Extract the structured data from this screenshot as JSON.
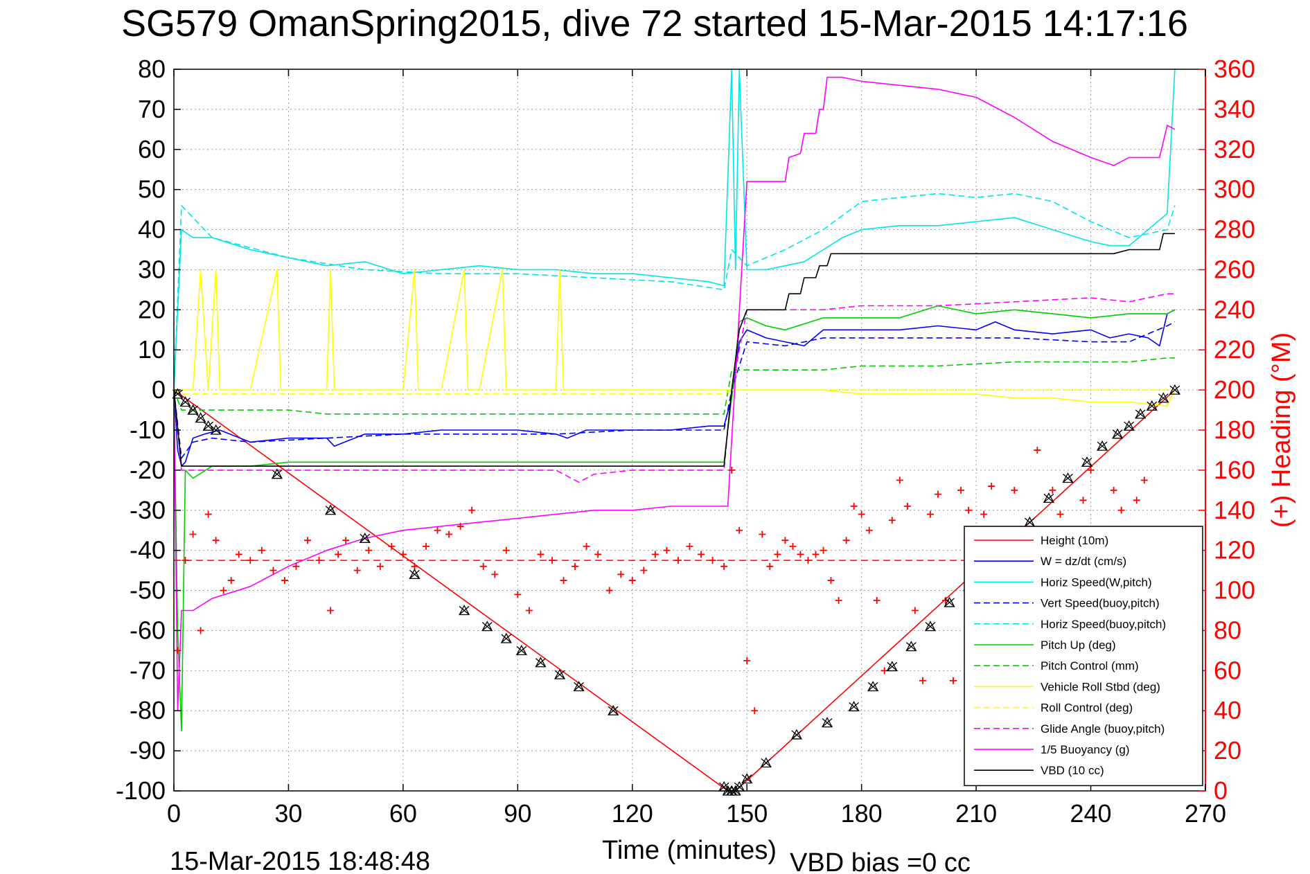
{
  "chart_data": {
    "type": "line",
    "title": "SG579 OmanSpring2015, dive 72 started 15-Mar-2015 14:17:16",
    "xlabel": "Time (minutes)",
    "ylabel": "",
    "y2label": "(+) Heading (°M)",
    "xlim": [
      0,
      270
    ],
    "ylim": [
      -100,
      80
    ],
    "y2lim": [
      0,
      360
    ],
    "xticks": [
      "0",
      "30",
      "60",
      "90",
      "120",
      "150",
      "180",
      "210",
      "240",
      "270"
    ],
    "yticks": [
      "80",
      "70",
      "60",
      "50",
      "40",
      "30",
      "20",
      "10",
      "0",
      "-10",
      "-20",
      "-30",
      "-40",
      "-50",
      "-60",
      "-70",
      "-80",
      "-90",
      "-100"
    ],
    "y2ticks": [
      "360",
      "340",
      "320",
      "300",
      "280",
      "260",
      "240",
      "220",
      "200",
      "180",
      "160",
      "140",
      "120",
      "100",
      "80",
      "60",
      "40",
      "20",
      "0"
    ],
    "grid": true,
    "legend_position": "bottom-right",
    "footer_left": "15-Mar-2015 18:48:48",
    "footer_right": "VBD bias =0 cc",
    "series": [
      {
        "name": "Height (10m)",
        "color": "#ff0000",
        "style": "solid",
        "x": [
          0,
          145,
          147,
          262
        ],
        "y": [
          0,
          -100,
          -100,
          0
        ]
      },
      {
        "name": "W = dz/dt (cm/s)",
        "color": "#0000ff",
        "style": "solid",
        "x": [
          0,
          1,
          2,
          3,
          5,
          8,
          12,
          20,
          30,
          40,
          42,
          50,
          60,
          70,
          80,
          90,
          100,
          103,
          108,
          110,
          120,
          130,
          140,
          144,
          146,
          148,
          150,
          155,
          160,
          165,
          170,
          175,
          180,
          190,
          200,
          210,
          215,
          220,
          230,
          240,
          245,
          250,
          255,
          258,
          260,
          262
        ],
        "y": [
          0,
          -15,
          -19,
          -18,
          -12,
          -11,
          -10,
          -13,
          -12,
          -12,
          -14,
          -11,
          -11,
          -10,
          -10,
          -10,
          -11,
          -12,
          -10,
          -10,
          -10,
          -10,
          -9,
          -9,
          -2,
          12,
          15,
          13,
          12,
          11,
          15,
          15,
          15,
          15,
          16,
          15,
          17,
          15,
          14,
          15,
          13,
          14,
          13,
          11,
          19,
          20
        ]
      },
      {
        "name": "Horiz Speed(W,pitch)",
        "color": "#00e5e5",
        "style": "solid",
        "x": [
          0,
          2,
          5,
          10,
          20,
          30,
          40,
          50,
          60,
          70,
          80,
          90,
          100,
          110,
          120,
          130,
          140,
          144,
          146,
          147,
          148,
          150,
          155,
          160,
          165,
          170,
          175,
          180,
          190,
          200,
          210,
          220,
          230,
          240,
          245,
          250,
          255,
          260,
          262
        ],
        "y": [
          0,
          40,
          38,
          38,
          35,
          33,
          31,
          32,
          29,
          30,
          31,
          30,
          30,
          29,
          29,
          28,
          27,
          26,
          80,
          30,
          80,
          30,
          30,
          31,
          32,
          35,
          38,
          40,
          41,
          41,
          42,
          43,
          40,
          37,
          36,
          36,
          40,
          44,
          80
        ]
      },
      {
        "name": "Vert Speed(buoy,pitch)",
        "color": "#0000ff",
        "style": "dashed",
        "x": [
          0,
          2,
          5,
          10,
          20,
          40,
          60,
          80,
          100,
          120,
          140,
          144,
          146,
          150,
          160,
          170,
          180,
          200,
          220,
          240,
          250,
          260,
          262
        ],
        "y": [
          0,
          -17,
          -13,
          -12,
          -13,
          -12,
          -11,
          -11,
          -11,
          -10,
          -10,
          -10,
          0,
          12,
          11,
          13,
          13,
          13,
          13,
          12,
          12,
          16,
          17
        ]
      },
      {
        "name": "Horiz Speed(buoy,pitch)",
        "color": "#00e5e5",
        "style": "dashed",
        "x": [
          0,
          2,
          10,
          30,
          50,
          70,
          90,
          110,
          130,
          144,
          146,
          150,
          160,
          170,
          180,
          190,
          200,
          210,
          220,
          230,
          240,
          250,
          260,
          262
        ],
        "y": [
          0,
          46,
          38,
          33,
          30,
          29,
          29,
          28,
          27,
          25,
          35,
          31,
          35,
          40,
          47,
          48,
          49,
          48,
          49,
          47,
          42,
          38,
          40,
          46
        ]
      },
      {
        "name": "Pitch Up (deg)",
        "color": "#00cc00",
        "style": "solid",
        "x": [
          0,
          1,
          2,
          3,
          5,
          10,
          20,
          30,
          40,
          50,
          60,
          70,
          80,
          100,
          120,
          140,
          144,
          146,
          148,
          150,
          155,
          160,
          170,
          180,
          190,
          200,
          210,
          220,
          230,
          240,
          250,
          260,
          262
        ],
        "y": [
          0,
          -60,
          -85,
          -20,
          -22,
          -19,
          -19,
          -18,
          -18,
          -18,
          -18,
          -18,
          -18,
          -18,
          -18,
          -18,
          -18,
          -2,
          17,
          18,
          16,
          15,
          18,
          18,
          18,
          21,
          19,
          20,
          19,
          18,
          19,
          19,
          20
        ]
      },
      {
        "name": "Pitch Control (mm)",
        "color": "#00cc00",
        "style": "dashed",
        "x": [
          0,
          2,
          5,
          10,
          20,
          30,
          40,
          60,
          80,
          100,
          120,
          140,
          144,
          146,
          150,
          160,
          170,
          180,
          190,
          200,
          220,
          240,
          250,
          260,
          262
        ],
        "y": [
          0,
          -5,
          -5,
          -5,
          -5,
          -5,
          -6,
          -6,
          -6,
          -6,
          -6,
          -6,
          -6,
          5,
          5,
          5,
          5,
          6,
          6,
          6,
          7,
          7,
          7,
          8,
          8
        ]
      },
      {
        "name": "Vehicle Roll Stbd (deg)",
        "color": "#ffff00",
        "style": "solid",
        "x": [
          0,
          2,
          5,
          7,
          9,
          11,
          12,
          20,
          27,
          28,
          30,
          40,
          41,
          42,
          50,
          60,
          63,
          64,
          70,
          76,
          77,
          80,
          86,
          87,
          90,
          100,
          101,
          102,
          110,
          120,
          140,
          144,
          146,
          150,
          160,
          170,
          180,
          190,
          200,
          210,
          220,
          230,
          240,
          250,
          260,
          262
        ],
        "y": [
          0,
          0,
          0,
          30,
          0,
          30,
          0,
          0,
          30,
          0,
          0,
          0,
          30,
          0,
          0,
          0,
          30,
          0,
          0,
          30,
          0,
          0,
          30,
          0,
          0,
          0,
          30,
          0,
          0,
          0,
          0,
          0,
          0,
          0,
          0,
          0,
          -1,
          -1,
          -1,
          -1,
          -2,
          -2,
          -3,
          -3,
          -4,
          0
        ]
      },
      {
        "name": "Roll Control (deg)",
        "color": "#ffff00",
        "style": "dashed",
        "x": [
          0,
          2,
          10,
          30,
          50,
          70,
          90,
          110,
          130,
          144,
          146,
          150,
          160,
          170,
          180,
          200,
          220,
          240,
          260,
          262
        ],
        "y": [
          0,
          -1,
          -1,
          -1,
          -1,
          -1,
          -1,
          -1,
          -1,
          -1,
          0,
          0,
          0,
          0,
          0,
          0,
          0,
          0,
          0,
          0
        ]
      },
      {
        "name": "Glide Angle (buoy,pitch)",
        "color": "#ff00ff",
        "style": "dashed",
        "x": [
          0,
          2,
          5,
          10,
          20,
          40,
          60,
          80,
          100,
          106,
          110,
          120,
          140,
          144,
          146,
          150,
          160,
          170,
          180,
          200,
          220,
          240,
          250,
          260,
          262
        ],
        "y": [
          0,
          -20,
          -20,
          -20,
          -20,
          -20,
          -20,
          -20,
          -20,
          -23,
          -21,
          -20,
          -20,
          -20,
          0,
          20,
          20,
          20,
          21,
          21,
          22,
          23,
          22,
          24,
          24
        ]
      },
      {
        "name": "1/5 Buoyancy (g)",
        "color": "#ff00ff",
        "style": "solid",
        "x": [
          0,
          1,
          2,
          5,
          10,
          20,
          30,
          40,
          50,
          60,
          70,
          80,
          90,
          100,
          110,
          120,
          130,
          140,
          145,
          150,
          160,
          161,
          164,
          165,
          168,
          169,
          170,
          171,
          175,
          180,
          190,
          200,
          210,
          220,
          230,
          240,
          246,
          250,
          258,
          260,
          262
        ],
        "y": [
          0,
          -80,
          -55,
          -55,
          -52,
          -49,
          -44,
          -40,
          -37,
          -35,
          -34,
          -33,
          -32,
          -31,
          -30,
          -30,
          -29,
          -29,
          -29,
          52,
          52,
          58,
          59,
          64,
          64,
          70,
          70,
          78,
          78,
          77,
          76,
          75,
          73,
          68,
          62,
          58,
          56,
          58,
          58,
          66,
          65
        ]
      },
      {
        "name": "VBD (10 cc)",
        "color": "#000000",
        "style": "solid",
        "x": [
          0,
          2,
          5,
          10,
          20,
          30,
          40,
          60,
          80,
          100,
          120,
          140,
          144,
          146,
          148,
          150,
          155,
          160,
          161,
          164,
          165,
          168,
          169,
          171,
          172,
          180,
          200,
          220,
          240,
          246,
          250,
          258,
          259,
          262
        ],
        "y": [
          0,
          -19,
          -19,
          -19,
          -19,
          -19,
          -19,
          -19,
          -19,
          -19,
          -19,
          -19,
          -19,
          0,
          15,
          20,
          20,
          20,
          24,
          24,
          28,
          28,
          31,
          31,
          34,
          34,
          34,
          34,
          34,
          34,
          35,
          35,
          39,
          39
        ]
      }
    ],
    "heading_scatter": {
      "name": "(+) Heading",
      "color": "#ff0000",
      "axis": "right",
      "x": [
        1,
        3,
        5,
        7,
        9,
        11,
        13,
        15,
        17,
        20,
        23,
        26,
        29,
        32,
        35,
        38,
        41,
        43,
        45,
        48,
        51,
        54,
        57,
        60,
        63,
        66,
        69,
        72,
        75,
        78,
        81,
        84,
        87,
        90,
        93,
        96,
        99,
        102,
        105,
        108,
        111,
        114,
        117,
        120,
        123,
        126,
        129,
        132,
        135,
        138,
        141,
        144,
        146,
        148,
        150,
        152,
        154,
        156,
        158,
        160,
        162,
        164,
        166,
        168,
        170,
        172,
        174,
        176,
        178,
        180,
        182,
        184,
        186,
        188,
        190,
        192,
        194,
        196,
        198,
        200,
        202,
        204,
        206,
        208,
        210,
        212,
        214,
        216,
        218,
        220,
        222,
        224,
        226,
        228,
        230,
        232,
        234,
        236,
        238,
        240,
        242,
        244,
        246,
        248,
        250,
        252,
        254
      ],
      "y": [
        70,
        115,
        128,
        80,
        138,
        125,
        100,
        105,
        118,
        115,
        120,
        110,
        105,
        112,
        125,
        115,
        90,
        118,
        125,
        110,
        120,
        112,
        122,
        118,
        112,
        122,
        130,
        128,
        132,
        140,
        112,
        108,
        120,
        98,
        90,
        118,
        115,
        105,
        112,
        122,
        118,
        100,
        108,
        105,
        110,
        118,
        120,
        115,
        122,
        118,
        115,
        112,
        160,
        130,
        65,
        40,
        128,
        112,
        118,
        125,
        122,
        118,
        115,
        118,
        120,
        105,
        95,
        125,
        142,
        138,
        130,
        95,
        60,
        135,
        155,
        142,
        90,
        55,
        138,
        148,
        95,
        55,
        150,
        140,
        55,
        138,
        152,
        90,
        60,
        150,
        95,
        55,
        170,
        60,
        150,
        138,
        75,
        55,
        145,
        160,
        90,
        55,
        150,
        140,
        60,
        145,
        155
      ]
    },
    "heading_reference": {
      "name": "heading reference",
      "color": "#ff0000",
      "style": "dashed",
      "y": 115,
      "axis": "right"
    },
    "markers": {
      "name": "position markers",
      "color": "#000000",
      "x": [
        1,
        3,
        5,
        7,
        9,
        11,
        27,
        41,
        50,
        63,
        76,
        82,
        87,
        91,
        96,
        101,
        106,
        115,
        144,
        145,
        146,
        147,
        148,
        150,
        155,
        163,
        171,
        178,
        183,
        188,
        193,
        198,
        203,
        208,
        213,
        218,
        224,
        229,
        234,
        239,
        243,
        247,
        250,
        253,
        256,
        259,
        262
      ],
      "y": [
        -1,
        -3,
        -5,
        -7,
        -9,
        -10,
        -21,
        -30,
        -37,
        -46,
        -55,
        -59,
        -62,
        -65,
        -68,
        -71,
        -74,
        -80,
        -99,
        -100,
        -100,
        -100,
        -99,
        -97,
        -93,
        -86,
        -83,
        -79,
        -74,
        -69,
        -64,
        -59,
        -53,
        -49,
        -44,
        -38,
        -33,
        -27,
        -22,
        -18,
        -14,
        -11,
        -9,
        -6,
        -4,
        -2,
        0
      ]
    }
  }
}
